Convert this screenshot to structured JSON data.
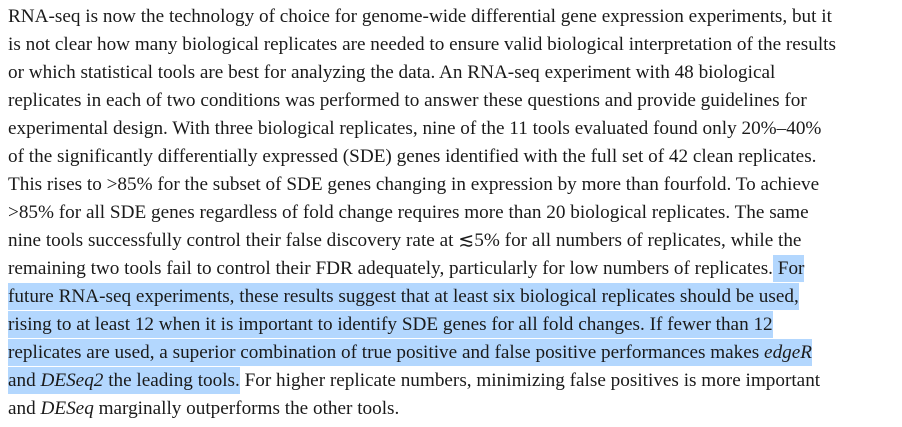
{
  "selection_color": "#b3d7fe",
  "abstract": {
    "lines": [
      [
        {
          "text": "RNA-seq is now the technology of choice for genome-wide differential gene expression experiments, but it"
        }
      ],
      [
        {
          "text": "is not clear how many biological replicates are needed to ensure valid biological interpretation of the results"
        }
      ],
      [
        {
          "text": "or which statistical tools are best for analyzing the data. An RNA-seq experiment with 48 biological"
        }
      ],
      [
        {
          "text": "replicates in each of two conditions was performed to answer these questions and provide guidelines for"
        }
      ],
      [
        {
          "text": "experimental design. With three biological replicates, nine of the 11 tools evaluated found only 20%–40%"
        }
      ],
      [
        {
          "text": "of the significantly differentially expressed (SDE) genes identified with the full set of 42 clean replicates."
        }
      ],
      [
        {
          "text": "This rises to >85% for the subset of SDE genes changing in expression by more than fourfold. To achieve"
        }
      ],
      [
        {
          "text": ">85% for all SDE genes regardless of fold change requires more than 20 biological replicates. The same"
        }
      ],
      [
        {
          "text": "nine tools successfully control their false discovery rate at ≲5% for all numbers of replicates, while the"
        }
      ],
      [
        {
          "text": "remaining two tools fail to control their FDR adequately, particularly for low numbers of replicates."
        },
        {
          "text": " For",
          "selected": true
        }
      ],
      [
        {
          "text": "future RNA-seq experiments, these results suggest that at least six biological replicates should be used,",
          "selected": true
        }
      ],
      [
        {
          "text": "rising to at least 12 when it is important to identify SDE genes for all fold changes. If fewer than 12",
          "selected": true
        }
      ],
      [
        {
          "text": "replicates are used, a superior combination of true positive and false positive performances makes ",
          "selected": true
        },
        {
          "text": "edgeR",
          "selected": true,
          "italic": true
        }
      ],
      [
        {
          "text": "and ",
          "selected": true
        },
        {
          "text": "DESeq2",
          "selected": true,
          "italic": true
        },
        {
          "text": " the leading tools.",
          "selected": true
        },
        {
          "text": " For higher replicate numbers, minimizing false positives is more important"
        }
      ],
      [
        {
          "text": "and "
        },
        {
          "text": "DESeq",
          "italic": true
        },
        {
          "text": " marginally outperforms the other tools."
        }
      ]
    ]
  }
}
